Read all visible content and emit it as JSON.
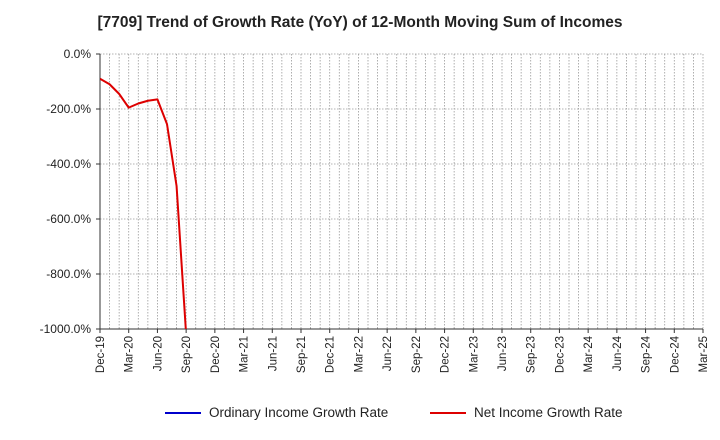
{
  "title": "[7709]  Trend of Growth Rate (YoY) of 12-Month Moving Sum of Incomes",
  "chart_data": {
    "type": "line",
    "title": "[7709]  Trend of Growth Rate (YoY) of 12-Month Moving Sum of Incomes",
    "xlabel": "",
    "ylabel": "",
    "ylim": [
      -1000,
      0
    ],
    "y_ticks": [
      "0.0%",
      "-200.0%",
      "-400.0%",
      "-600.0%",
      "-800.0%",
      "-1000.0%"
    ],
    "y_tick_values": [
      0,
      -200,
      -400,
      -600,
      -800,
      -1000
    ],
    "x_ticks": [
      "Dec-19",
      "Mar-20",
      "Jun-20",
      "Sep-20",
      "Dec-20",
      "Mar-21",
      "Jun-21",
      "Sep-21",
      "Dec-21",
      "Mar-22",
      "Jun-22",
      "Sep-22",
      "Dec-22",
      "Mar-23",
      "Jun-23",
      "Sep-23",
      "Dec-23",
      "Mar-24",
      "Jun-24",
      "Sep-24",
      "Dec-24",
      "Mar-25"
    ],
    "x_range_months": [
      "2019-12",
      "2025-03"
    ],
    "grid": true,
    "legend_position": "bottom",
    "series": [
      {
        "name": "Ordinary Income Growth Rate",
        "color": "#0000cc",
        "x": [],
        "values": []
      },
      {
        "name": "Net Income Growth Rate",
        "color": "#dd0000",
        "x": [
          "2019-12",
          "2020-01",
          "2020-02",
          "2020-03",
          "2020-04",
          "2020-05",
          "2020-06",
          "2020-07",
          "2020-08",
          "2020-09"
        ],
        "values": [
          -90,
          -110,
          -145,
          -195,
          -180,
          -170,
          -165,
          -255,
          -480,
          -1020
        ]
      }
    ]
  }
}
